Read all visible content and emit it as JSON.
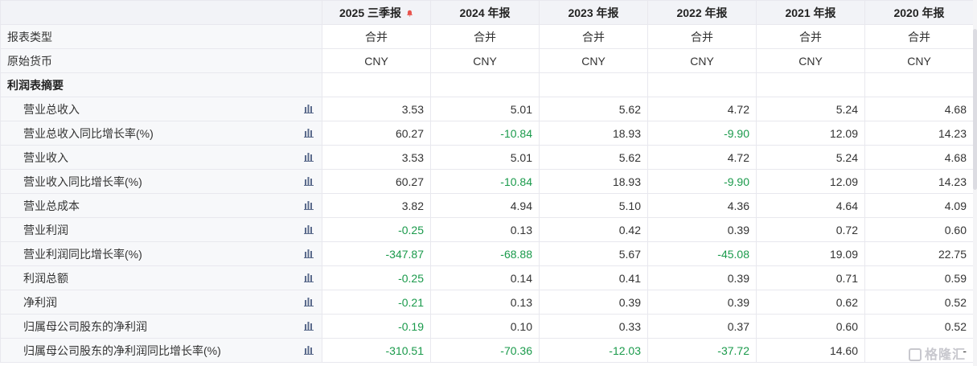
{
  "columns": [
    {
      "label": "2025 三季报",
      "alert": true
    },
    {
      "label": "2024 年报"
    },
    {
      "label": "2023 年报"
    },
    {
      "label": "2022 年报"
    },
    {
      "label": "2021 年报"
    },
    {
      "label": "2020 年报"
    }
  ],
  "rows": [
    {
      "label": "报表类型",
      "kind": "info",
      "values": [
        "合并",
        "合并",
        "合并",
        "合并",
        "合并",
        "合并"
      ]
    },
    {
      "label": "原始货币",
      "kind": "info",
      "values": [
        "CNY",
        "CNY",
        "CNY",
        "CNY",
        "CNY",
        "CNY"
      ]
    },
    {
      "label": "利润表摘要",
      "kind": "section",
      "values": [
        "",
        "",
        "",
        "",
        "",
        ""
      ]
    },
    {
      "label": "营业总收入",
      "kind": "metric",
      "icon": "bar-chart-icon",
      "values": [
        "3.53",
        "5.01",
        "5.62",
        "4.72",
        "5.24",
        "4.68"
      ]
    },
    {
      "label": "营业总收入同比增长率(%)",
      "kind": "metric",
      "icon": "bar-chart-icon",
      "values": [
        "60.27",
        "-10.84",
        "18.93",
        "-9.90",
        "12.09",
        "14.23"
      ]
    },
    {
      "label": "营业收入",
      "kind": "metric",
      "icon": "bar-chart-icon",
      "values": [
        "3.53",
        "5.01",
        "5.62",
        "4.72",
        "5.24",
        "4.68"
      ]
    },
    {
      "label": "营业收入同比增长率(%)",
      "kind": "metric",
      "icon": "bar-chart-icon",
      "values": [
        "60.27",
        "-10.84",
        "18.93",
        "-9.90",
        "12.09",
        "14.23"
      ]
    },
    {
      "label": "营业总成本",
      "kind": "metric",
      "icon": "bar-chart-icon",
      "values": [
        "3.82",
        "4.94",
        "5.10",
        "4.36",
        "4.64",
        "4.09"
      ]
    },
    {
      "label": "营业利润",
      "kind": "metric",
      "icon": "bar-chart-icon",
      "values": [
        "-0.25",
        "0.13",
        "0.42",
        "0.39",
        "0.72",
        "0.60"
      ]
    },
    {
      "label": "营业利润同比增长率(%)",
      "kind": "metric",
      "icon": "bar-chart-icon",
      "values": [
        "-347.87",
        "-68.88",
        "5.67",
        "-45.08",
        "19.09",
        "22.75"
      ]
    },
    {
      "label": "利润总额",
      "kind": "metric",
      "icon": "bar-chart-icon",
      "values": [
        "-0.25",
        "0.14",
        "0.41",
        "0.39",
        "0.71",
        "0.59"
      ]
    },
    {
      "label": "净利润",
      "kind": "metric",
      "icon": "bar-chart-icon",
      "values": [
        "-0.21",
        "0.13",
        "0.39",
        "0.39",
        "0.62",
        "0.52"
      ]
    },
    {
      "label": "归属母公司股东的净利润",
      "kind": "metric",
      "icon": "bar-chart-icon",
      "values": [
        "-0.19",
        "0.10",
        "0.33",
        "0.37",
        "0.60",
        "0.52"
      ]
    },
    {
      "label": "归属母公司股东的净利润同比增长率(%)",
      "kind": "metric",
      "icon": "bar-chart-icon",
      "values": [
        "-310.51",
        "-70.36",
        "-12.03",
        "-37.72",
        "14.60",
        "-"
      ]
    }
  ],
  "colors": {
    "negative": "#1a9a4b",
    "alert": "#e8544e",
    "header_bg": "#f2f3f7"
  },
  "watermark": {
    "text": "格隆汇"
  }
}
